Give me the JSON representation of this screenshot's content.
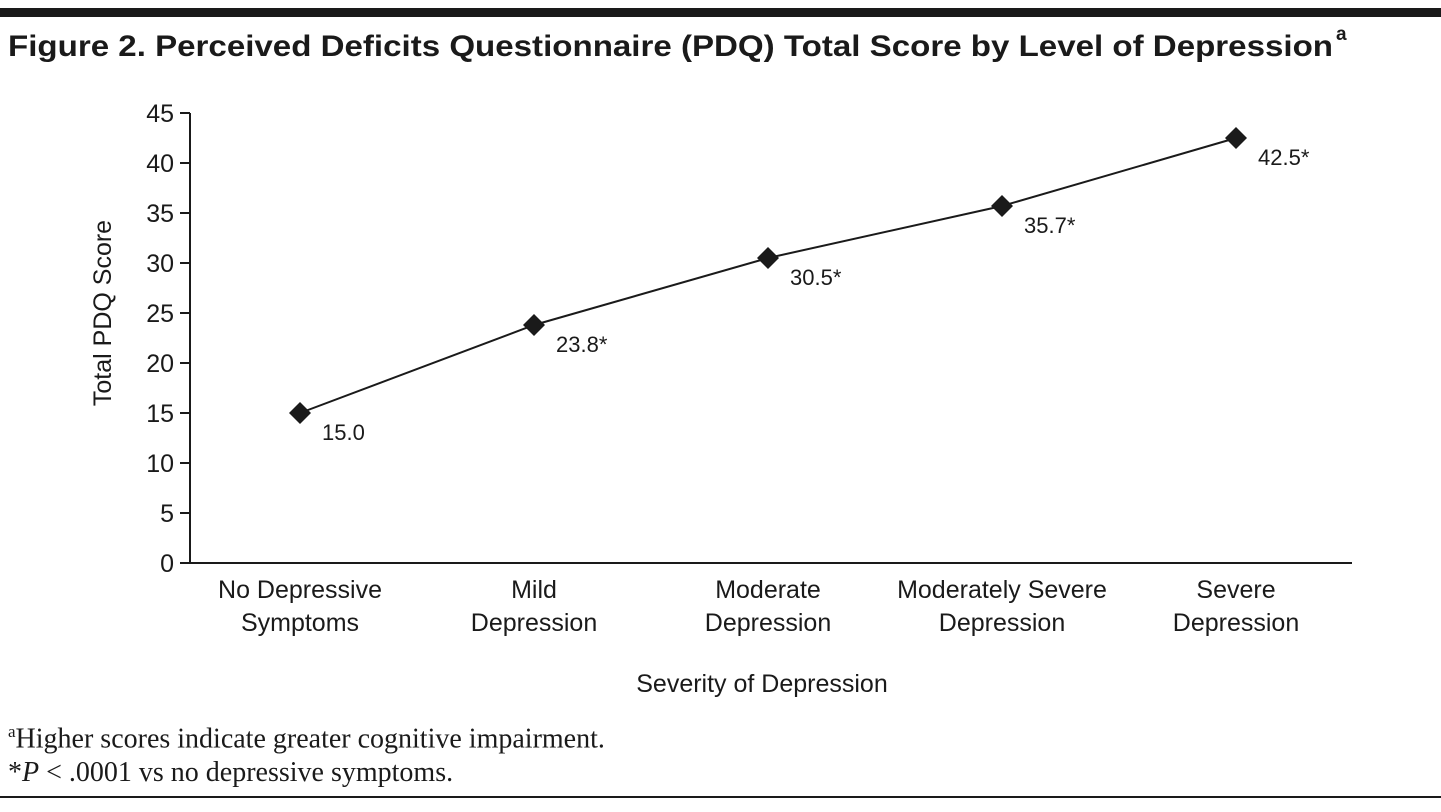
{
  "title": "Figure 2. Perceived Deficits Questionnaire (PDQ) Total Score by Level of Depression",
  "title_note": "a",
  "chart_data": {
    "type": "line",
    "categories": [
      "No Depressive\nSymptoms",
      "Mild\nDepression",
      "Moderate\nDepression",
      "Moderately Severe\nDepression",
      "Severe\nDepression"
    ],
    "values": [
      15.0,
      23.8,
      30.5,
      35.7,
      42.5
    ],
    "value_labels": [
      "15.0",
      "23.8*",
      "30.5*",
      "35.7*",
      "42.5*"
    ],
    "color": "#1a1a1a",
    "ylim": [
      0,
      45
    ],
    "yticks": [
      0,
      5,
      10,
      15,
      20,
      25,
      30,
      35,
      40,
      45
    ],
    "ylabel": "Total PDQ Score",
    "xlabel": "Severity of Depression"
  },
  "footnotes": [
    {
      "marker": "a",
      "text": "Higher scores indicate greater cognitive impairment."
    },
    {
      "marker": "*",
      "italic": "P",
      "text": " < .0001 vs no depressive symptoms."
    }
  ]
}
